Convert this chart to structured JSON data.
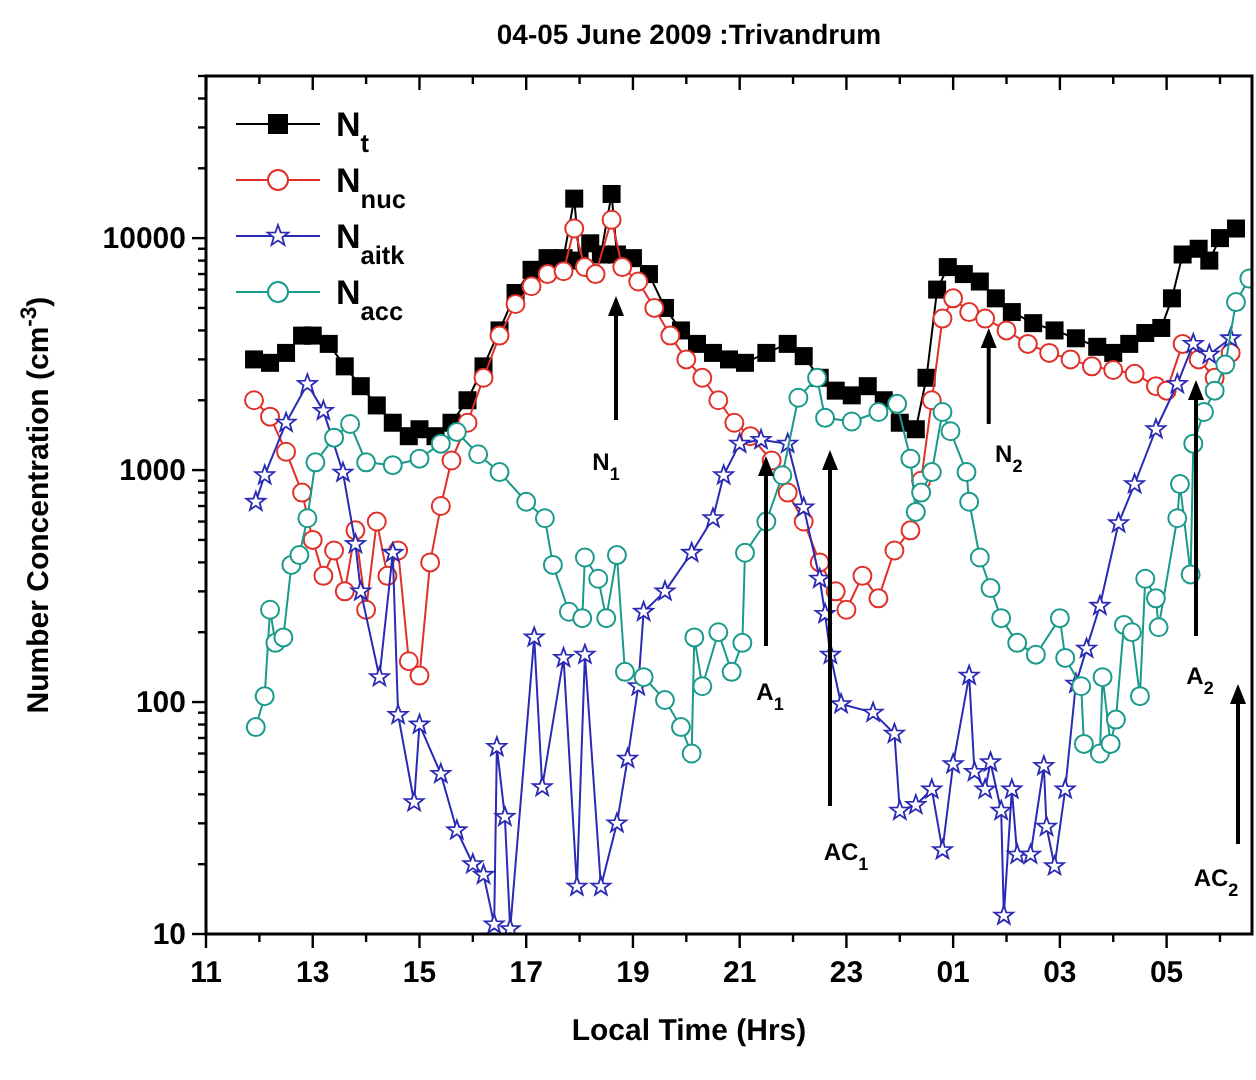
{
  "chart_data": {
    "type": "line",
    "title": "04-05 June 2009 :Trivandrum",
    "xlabel": "Local Time (Hrs)",
    "ylabel": "Number Concentration (cm$^{-3}$)",
    "log": "y",
    "xlim": [
      "2009-06-04T11:00",
      "2009-06-05T06:36"
    ],
    "ylim": [
      10,
      50000
    ],
    "xticks": [
      {
        "value": "2009-06-04T11:00",
        "label": "11"
      },
      {
        "value": "2009-06-04T12:00",
        "label": null
      },
      {
        "value": "2009-06-04T13:00",
        "label": "13"
      },
      {
        "value": "2009-06-04T14:00",
        "label": null
      },
      {
        "value": "2009-06-04T15:00",
        "label": "15"
      },
      {
        "value": "2009-06-04T16:00",
        "label": null
      },
      {
        "value": "2009-06-04T17:00",
        "label": "17"
      },
      {
        "value": "2009-06-04T18:00",
        "label": null
      },
      {
        "value": "2009-06-04T19:00",
        "label": "19"
      },
      {
        "value": "2009-06-04T20:00",
        "label": null
      },
      {
        "value": "2009-06-04T21:00",
        "label": "21"
      },
      {
        "value": "2009-06-04T22:00",
        "label": null
      },
      {
        "value": "2009-06-04T23:00",
        "label": "23"
      },
      {
        "value": "2009-06-05T00:00",
        "label": null
      },
      {
        "value": "2009-06-05T01:00",
        "label": "01"
      },
      {
        "value": "2009-06-05T02:00",
        "label": null
      },
      {
        "value": "2009-06-05T03:00",
        "label": "03"
      },
      {
        "value": "2009-06-05T04:00",
        "label": null
      },
      {
        "value": "2009-06-05T05:00",
        "label": "05"
      },
      {
        "value": "2009-06-05T06:00",
        "label": null
      }
    ],
    "yticks": [
      10,
      {
        "value": 20,
        "label": null
      },
      {
        "value": 30,
        "label": null
      },
      {
        "value": 40,
        "label": null
      },
      {
        "value": 50,
        "label": null
      },
      {
        "value": 60,
        "label": null
      },
      {
        "value": 70,
        "label": null
      },
      {
        "value": 80,
        "label": null
      },
      {
        "value": 90,
        "label": null
      },
      100,
      {
        "value": 200,
        "label": null
      },
      {
        "value": 300,
        "label": null
      },
      {
        "value": 400,
        "label": null
      },
      {
        "value": 500,
        "label": null
      },
      {
        "value": 600,
        "label": null
      },
      {
        "value": 700,
        "label": null
      },
      {
        "value": 800,
        "label": null
      },
      {
        "value": 900,
        "label": null
      },
      1000,
      {
        "value": 2000,
        "label": null
      },
      {
        "value": 3000,
        "label": null
      },
      {
        "value": 4000,
        "label": null
      },
      {
        "value": 5000,
        "label": null
      },
      {
        "value": 6000,
        "label": null
      },
      {
        "value": 7000,
        "label": null
      },
      {
        "value": 8000,
        "label": null
      },
      {
        "value": 9000,
        "label": null
      },
      10000,
      {
        "value": 20000,
        "label": null
      },
      {
        "value": 30000,
        "label": null
      },
      {
        "value": 40000,
        "label": null
      },
      {
        "value": 50000,
        "label": null
      }
    ],
    "grid": false,
    "legend": "top left",
    "line_style": "solid",
    "series": [
      {
        "name": "N$_{t}$",
        "color": "#000000",
        "marker": "square",
        "x": [
          "2009-06-04T11:54",
          "2009-06-04T12:12",
          "2009-06-04T12:30",
          "2009-06-04T12:48",
          "2009-06-04T13:00",
          "2009-06-04T13:18",
          "2009-06-04T13:36",
          "2009-06-04T13:54",
          "2009-06-04T14:12",
          "2009-06-04T14:30",
          "2009-06-04T14:48",
          "2009-06-04T15:00",
          "2009-06-04T15:18",
          "2009-06-04T15:36",
          "2009-06-04T15:54",
          "2009-06-04T16:12",
          "2009-06-04T16:30",
          "2009-06-04T16:48",
          "2009-06-04T17:06",
          "2009-06-04T17:24",
          "2009-06-04T17:42",
          "2009-06-04T17:54",
          "2009-06-04T18:00",
          "2009-06-04T18:12",
          "2009-06-04T18:24",
          "2009-06-04T18:36",
          "2009-06-04T18:42",
          "2009-06-04T19:00",
          "2009-06-04T19:18",
          "2009-06-04T19:36",
          "2009-06-04T19:54",
          "2009-06-04T20:12",
          "2009-06-04T20:30",
          "2009-06-04T20:48",
          "2009-06-04T21:06",
          "2009-06-04T21:30",
          "2009-06-04T21:54",
          "2009-06-04T22:12",
          "2009-06-04T22:30",
          "2009-06-04T22:48",
          "2009-06-04T23:06",
          "2009-06-04T23:24",
          "2009-06-04T23:42",
          "2009-06-05T00:00",
          "2009-06-05T00:18",
          "2009-06-05T00:30",
          "2009-06-05T00:42",
          "2009-06-05T00:54",
          "2009-06-05T01:12",
          "2009-06-05T01:30",
          "2009-06-05T01:48",
          "2009-06-05T02:06",
          "2009-06-05T02:30",
          "2009-06-05T02:54",
          "2009-06-05T03:18",
          "2009-06-05T03:42",
          "2009-06-05T04:00",
          "2009-06-05T04:18",
          "2009-06-05T04:36",
          "2009-06-05T04:54",
          "2009-06-05T05:06",
          "2009-06-05T05:18",
          "2009-06-05T05:36",
          "2009-06-05T05:48",
          "2009-06-05T06:00",
          "2009-06-05T06:18"
        ],
        "values": [
          3000,
          2900,
          3200,
          3800,
          3800,
          3500,
          2800,
          2300,
          1900,
          1600,
          1400,
          1500,
          1400,
          1600,
          2000,
          2800,
          4000,
          5800,
          7300,
          8200,
          8200,
          14800,
          8000,
          9500,
          8500,
          15500,
          8500,
          8200,
          7000,
          5000,
          4000,
          3500,
          3200,
          3000,
          2900,
          3200,
          3500,
          3100,
          2500,
          2200,
          2100,
          2300,
          2000,
          1600,
          1500,
          2500,
          6000,
          7500,
          7000,
          6500,
          5500,
          4800,
          4300,
          4000,
          3700,
          3400,
          3200,
          3500,
          3900,
          4100,
          5500,
          8500,
          9000,
          8000,
          10000,
          11000
        ]
      },
      {
        "name": "N$_{nuc}$",
        "color": "#e0302a",
        "marker": "circle",
        "x": [
          "2009-06-04T11:54",
          "2009-06-04T12:12",
          "2009-06-04T12:30",
          "2009-06-04T12:48",
          "2009-06-04T13:00",
          "2009-06-04T13:12",
          "2009-06-04T13:24",
          "2009-06-04T13:36",
          "2009-06-04T13:48",
          "2009-06-04T14:00",
          "2009-06-04T14:12",
          "2009-06-04T14:24",
          "2009-06-04T14:36",
          "2009-06-04T14:48",
          "2009-06-04T15:00",
          "2009-06-04T15:12",
          "2009-06-04T15:24",
          "2009-06-04T15:36",
          "2009-06-04T15:54",
          "2009-06-04T16:12",
          "2009-06-04T16:30",
          "2009-06-04T16:48",
          "2009-06-04T17:06",
          "2009-06-04T17:24",
          "2009-06-04T17:42",
          "2009-06-04T17:54",
          "2009-06-04T18:06",
          "2009-06-04T18:18",
          "2009-06-04T18:36",
          "2009-06-04T18:48",
          "2009-06-04T19:06",
          "2009-06-04T19:24",
          "2009-06-04T19:42",
          "2009-06-04T20:00",
          "2009-06-04T20:18",
          "2009-06-04T20:36",
          "2009-06-04T20:54",
          "2009-06-04T21:12",
          "2009-06-04T21:36",
          "2009-06-04T21:54",
          "2009-06-04T22:12",
          "2009-06-04T22:30",
          "2009-06-04T22:48",
          "2009-06-04T23:00",
          "2009-06-04T23:18",
          "2009-06-04T23:36",
          "2009-06-04T23:54",
          "2009-06-05T00:12",
          "2009-06-05T00:24",
          "2009-06-05T00:36",
          "2009-06-05T00:48",
          "2009-06-05T01:00",
          "2009-06-05T01:18",
          "2009-06-05T01:36",
          "2009-06-05T02:00",
          "2009-06-05T02:24",
          "2009-06-05T02:48",
          "2009-06-05T03:12",
          "2009-06-05T03:36",
          "2009-06-05T04:00",
          "2009-06-05T04:24",
          "2009-06-05T04:48",
          "2009-06-05T05:00",
          "2009-06-05T05:18",
          "2009-06-05T05:36",
          "2009-06-05T05:54",
          "2009-06-05T06:12"
        ],
        "values": [
          2000,
          1700,
          1200,
          800,
          500,
          350,
          450,
          300,
          550,
          250,
          600,
          350,
          450,
          150,
          130,
          400,
          700,
          1100,
          1600,
          2500,
          3800,
          5200,
          6200,
          7000,
          7200,
          11000,
          7500,
          7000,
          12000,
          7500,
          6500,
          5000,
          3800,
          3000,
          2500,
          2000,
          1600,
          1400,
          1100,
          800,
          600,
          400,
          300,
          250,
          350,
          280,
          450,
          550,
          900,
          2000,
          4500,
          5500,
          4800,
          4500,
          4000,
          3500,
          3200,
          3000,
          2800,
          2700,
          2600,
          2300,
          2200,
          3500,
          3000,
          2500,
          3200
        ]
      },
      {
        "name": "N$_{aitk}$",
        "color": "#2a2ab4",
        "marker": "star",
        "x": [
          "2009-06-04T11:56",
          "2009-06-04T12:06",
          "2009-06-04T12:30",
          "2009-06-04T12:54",
          "2009-06-04T13:12",
          "2009-06-04T13:34",
          "2009-06-04T13:48",
          "2009-06-04T13:54",
          "2009-06-04T14:15",
          "2009-06-04T14:30",
          "2009-06-04T14:36",
          "2009-06-04T14:54",
          "2009-06-04T15:00",
          "2009-06-04T15:24",
          "2009-06-04T15:42",
          "2009-06-04T16:00",
          "2009-06-04T16:12",
          "2009-06-04T16:24",
          "2009-06-04T16:27",
          "2009-06-04T16:36",
          "2009-06-04T16:42",
          "2009-06-04T17:09",
          "2009-06-04T17:18",
          "2009-06-04T17:42",
          "2009-06-04T17:57",
          "2009-06-04T18:06",
          "2009-06-04T18:24",
          "2009-06-04T18:42",
          "2009-06-04T18:54",
          "2009-06-04T19:06",
          "2009-06-04T19:12",
          "2009-06-04T19:36",
          "2009-06-04T20:06",
          "2009-06-04T20:30",
          "2009-06-04T20:42",
          "2009-06-04T21:00",
          "2009-06-04T21:24",
          "2009-06-04T21:54",
          "2009-06-04T22:12",
          "2009-06-04T22:30",
          "2009-06-04T22:36",
          "2009-06-04T22:42",
          "2009-06-04T22:54",
          "2009-06-04T23:30",
          "2009-06-04T23:54",
          "2009-06-05T00:00",
          "2009-06-05T00:18",
          "2009-06-05T00:36",
          "2009-06-05T00:48",
          "2009-06-05T01:00",
          "2009-06-05T01:18",
          "2009-06-05T01:24",
          "2009-06-05T01:36",
          "2009-06-05T01:42",
          "2009-06-05T01:54",
          "2009-06-05T01:57",
          "2009-06-05T02:06",
          "2009-06-05T02:12",
          "2009-06-05T02:27",
          "2009-06-05T02:42",
          "2009-06-05T02:45",
          "2009-06-05T02:54",
          "2009-06-05T03:06",
          "2009-06-05T03:18",
          "2009-06-05T03:30",
          "2009-06-05T03:45",
          "2009-06-05T04:06",
          "2009-06-05T04:24",
          "2009-06-05T04:48",
          "2009-06-05T05:12",
          "2009-06-05T05:30",
          "2009-06-05T05:48",
          "2009-06-05T06:12"
        ],
        "values": [
          730,
          950,
          1600,
          2350,
          1800,
          975,
          480,
          300,
          128,
          440,
          88,
          37,
          80,
          49,
          28,
          20,
          18,
          11,
          64,
          32,
          10.5,
          190,
          43,
          155,
          16,
          160,
          16,
          30,
          57,
          117,
          245,
          300,
          440,
          620,
          950,
          1300,
          1350,
          1300,
          690,
          340,
          240,
          160,
          98,
          90,
          73,
          34,
          36,
          42,
          23,
          54,
          130,
          50,
          42,
          55,
          34,
          12,
          42,
          22,
          22,
          53,
          29,
          19.6,
          42,
          120,
          170,
          260,
          590,
          870,
          1500,
          2350,
          3500,
          3150,
          3700
        ]
      },
      {
        "name": "N$_{acc}$",
        "color": "#1a9a8a",
        "marker": "circle",
        "x": [
          "2009-06-04T11:56",
          "2009-06-04T12:06",
          "2009-06-04T12:12",
          "2009-06-04T12:18",
          "2009-06-04T12:27",
          "2009-06-04T12:36",
          "2009-06-04T12:45",
          "2009-06-04T12:54",
          "2009-06-04T13:03",
          "2009-06-04T13:24",
          "2009-06-04T13:42",
          "2009-06-04T14:00",
          "2009-06-04T14:30",
          "2009-06-04T15:00",
          "2009-06-04T15:24",
          "2009-06-04T15:42",
          "2009-06-04T16:06",
          "2009-06-04T16:30",
          "2009-06-04T17:00",
          "2009-06-04T17:21",
          "2009-06-04T17:30",
          "2009-06-04T17:48",
          "2009-06-04T18:03",
          "2009-06-04T18:06",
          "2009-06-04T18:21",
          "2009-06-04T18:30",
          "2009-06-04T18:42",
          "2009-06-04T18:51",
          "2009-06-04T19:12",
          "2009-06-04T19:36",
          "2009-06-04T19:54",
          "2009-06-04T20:06",
          "2009-06-04T20:09",
          "2009-06-04T20:18",
          "2009-06-04T20:36",
          "2009-06-04T20:51",
          "2009-06-04T21:03",
          "2009-06-04T21:06",
          "2009-06-04T21:30",
          "2009-06-04T21:48",
          "2009-06-04T22:06",
          "2009-06-04T22:27",
          "2009-06-04T22:36",
          "2009-06-04T23:06",
          "2009-06-04T23:36",
          "2009-06-04T23:57",
          "2009-06-05T00:12",
          "2009-06-05T00:18",
          "2009-06-05T00:24",
          "2009-06-05T00:36",
          "2009-06-05T00:48",
          "2009-06-05T00:57",
          "2009-06-05T01:15",
          "2009-06-05T01:18",
          "2009-06-05T01:30",
          "2009-06-05T01:42",
          "2009-06-05T01:54",
          "2009-06-05T02:12",
          "2009-06-05T02:33",
          "2009-06-05T03:00",
          "2009-06-05T03:06",
          "2009-06-05T03:24",
          "2009-06-05T03:27",
          "2009-06-05T03:45",
          "2009-06-05T03:48",
          "2009-06-05T03:57",
          "2009-06-05T04:03",
          "2009-06-05T04:12",
          "2009-06-05T04:21",
          "2009-06-05T04:30",
          "2009-06-05T04:36",
          "2009-06-05T04:48",
          "2009-06-05T04:51",
          "2009-06-05T05:12",
          "2009-06-05T05:15",
          "2009-06-05T05:27",
          "2009-06-05T05:30",
          "2009-06-05T05:42",
          "2009-06-05T05:54",
          "2009-06-05T06:06",
          "2009-06-05T06:18",
          "2009-06-05T06:33"
        ],
        "values": [
          78,
          106,
          250,
          180,
          190,
          390,
          430,
          620,
          1080,
          1380,
          1580,
          1080,
          1050,
          1120,
          1300,
          1460,
          1170,
          980,
          730,
          620,
          390,
          245,
          230,
          420,
          340,
          230,
          430,
          135,
          128,
          102,
          78,
          60,
          190,
          117,
          200,
          135,
          180,
          440,
          600,
          950,
          2050,
          2500,
          1680,
          1620,
          1780,
          1930,
          1120,
          660,
          800,
          980,
          1780,
          1470,
          980,
          730,
          420,
          310,
          230,
          180,
          160,
          230,
          155,
          117,
          66,
          60,
          128,
          66,
          84,
          215,
          200,
          106,
          340,
          280,
          210,
          620,
          870,
          355,
          1300,
          1780,
          2200,
          2850,
          5300,
          6700
        ]
      }
    ],
    "annotations": [
      "N$_{1}$",
      {
        "text": "N$_{2}$",
        "x": "2009-06-05T01:40",
        "y": 4100
      },
      "A$_{1}$",
      "AC$_{1}$",
      "A$_{2}$",
      "AC$_{2}$"
    ]
  }
}
